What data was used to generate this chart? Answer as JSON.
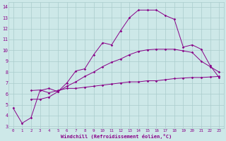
{
  "xlabel": "Windchill (Refroidissement éolien,°C)",
  "bg_color": "#cde8e8",
  "line_color": "#880088",
  "grid_color": "#aacccc",
  "xlim_min": -0.5,
  "xlim_max": 23.5,
  "ylim_min": 2.8,
  "ylim_max": 14.4,
  "xticks": [
    0,
    1,
    2,
    3,
    4,
    5,
    6,
    7,
    8,
    9,
    10,
    11,
    12,
    13,
    14,
    15,
    16,
    17,
    18,
    19,
    20,
    21,
    22,
    23
  ],
  "yticks": [
    3,
    4,
    5,
    6,
    7,
    8,
    9,
    10,
    11,
    12,
    13,
    14
  ],
  "line1_x": [
    0,
    1,
    2,
    3,
    4,
    5,
    6,
    7,
    8,
    9,
    10,
    11,
    12,
    13,
    14,
    15,
    16,
    17,
    18,
    19,
    20,
    21,
    22,
    23
  ],
  "line1_y": [
    4.7,
    3.3,
    3.8,
    6.3,
    6.5,
    6.2,
    7.0,
    8.1,
    8.3,
    9.6,
    10.7,
    10.5,
    11.8,
    13.0,
    13.7,
    13.7,
    13.7,
    13.2,
    12.85,
    10.3,
    10.5,
    10.1,
    8.6,
    7.5
  ],
  "line2_x": [
    2,
    3,
    4,
    5,
    6,
    7,
    8,
    9,
    10,
    11,
    12,
    13,
    14,
    15,
    16,
    17,
    18,
    19,
    20,
    21,
    22,
    23
  ],
  "line2_y": [
    6.3,
    6.35,
    6.1,
    6.3,
    6.5,
    6.5,
    6.6,
    6.7,
    6.8,
    6.9,
    7.0,
    7.1,
    7.1,
    7.2,
    7.2,
    7.3,
    7.4,
    7.45,
    7.5,
    7.5,
    7.55,
    7.6
  ],
  "line3_x": [
    2,
    3,
    4,
    5,
    6,
    7,
    8,
    9,
    10,
    11,
    12,
    13,
    14,
    15,
    16,
    17,
    18,
    19,
    20,
    21,
    22,
    23
  ],
  "line3_y": [
    5.5,
    5.5,
    5.7,
    6.2,
    6.7,
    7.1,
    7.6,
    8.0,
    8.5,
    8.9,
    9.2,
    9.6,
    9.9,
    10.05,
    10.1,
    10.1,
    10.1,
    9.95,
    9.8,
    9.0,
    8.5,
    8.0
  ]
}
